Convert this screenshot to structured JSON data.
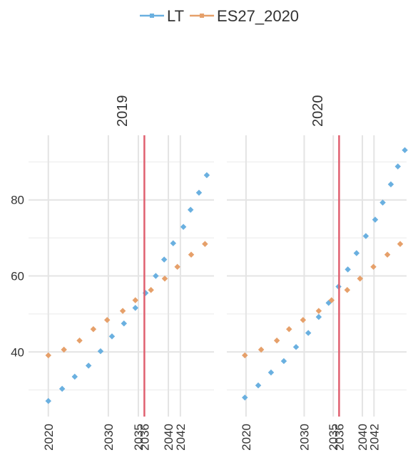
{
  "chart_data": {
    "type": "scatter",
    "series": [
      {
        "name": "LT",
        "color": "#6ab0e0"
      },
      {
        "name": "ES27_2020",
        "color": "#e6a06a"
      }
    ],
    "xlim": [
      2016.7,
      2047.6
    ],
    "xticks": [
      2020,
      2030,
      2035,
      2036,
      2040,
      2042
    ],
    "ylim": [
      23,
      97
    ],
    "yticks": [
      40,
      60,
      80
    ],
    "yminor": [
      30,
      50,
      70,
      90
    ],
    "vline": 2036,
    "vline_color": "#e06070",
    "grid": true,
    "panels": [
      {
        "title": "2019",
        "series": [
          {
            "x": [
              2020,
              2022.3,
              2024.4,
              2026.7,
              2028.7,
              2030.6,
              2032.6,
              2034.5,
              2036.2,
              2037.9,
              2039.3,
              2040.8,
              2042.5,
              2043.7,
              2045.1,
              2046.4
            ],
            "values": [
              27.1,
              30.3,
              33.5,
              36.4,
              40.2,
              44.1,
              47.5,
              51.6,
              55.5,
              60,
              64.3,
              68.6,
              72.9,
              77.4,
              81.9,
              86.5
            ]
          },
          {
            "x": [
              2020,
              2022.6,
              2025.2,
              2027.5,
              2029.8,
              2032.4,
              2034.5,
              2037.1,
              2039.4,
              2041.5,
              2043.8,
              2046.1
            ],
            "values": [
              39.1,
              40.6,
              43,
              46,
              48.4,
              50.8,
              53.6,
              56.3,
              59.3,
              62.4,
              65.6,
              68.4
            ]
          }
        ]
      },
      {
        "title": "2020",
        "series": [
          {
            "x": [
              2019.8,
              2022.1,
              2024.3,
              2026.5,
              2028.6,
              2030.7,
              2032.5,
              2034.2,
              2035.9,
              2037.5,
              2039,
              2040.6,
              2042.2,
              2043.5,
              2044.9,
              2046.1,
              2047.3
            ],
            "values": [
              28,
              31.2,
              34.6,
              37.6,
              41.3,
              45,
              49.2,
              52.9,
              57.2,
              61.7,
              66,
              70.5,
              74.8,
              79.3,
              84.1,
              88.8,
              93.1
            ]
          },
          {
            "x": [
              2019.8,
              2022.6,
              2025.3,
              2027.4,
              2029.8,
              2032.5,
              2034.7,
              2037.4,
              2039.6,
              2041.9,
              2044.3,
              2046.5
            ],
            "values": [
              39.1,
              40.6,
              43,
              46,
              48.4,
              50.8,
              53.6,
              56.3,
              59.3,
              62.4,
              65.6,
              68.4
            ]
          }
        ]
      }
    ]
  }
}
